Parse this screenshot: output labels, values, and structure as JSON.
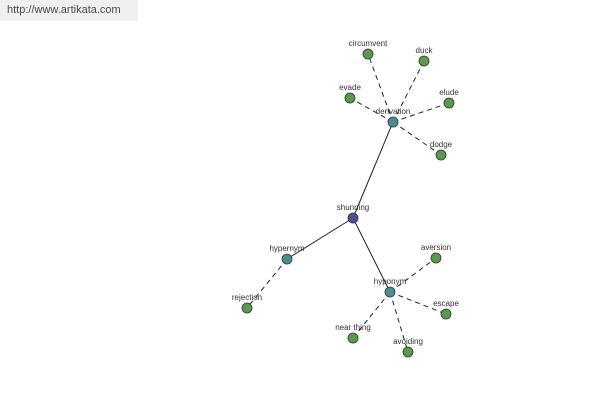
{
  "header": {
    "url": "http://www.artikata.com"
  },
  "graph": {
    "center": "shunning",
    "groups": [
      {
        "label": "derivation",
        "leaves": [
          "circumvent",
          "duck",
          "evade",
          "elude",
          "dodge"
        ]
      },
      {
        "label": "hypernym",
        "leaves": [
          "rejection"
        ]
      },
      {
        "label": "hyponym",
        "leaves": [
          "aversion",
          "escape",
          "near thing",
          "avoiding"
        ]
      }
    ]
  }
}
